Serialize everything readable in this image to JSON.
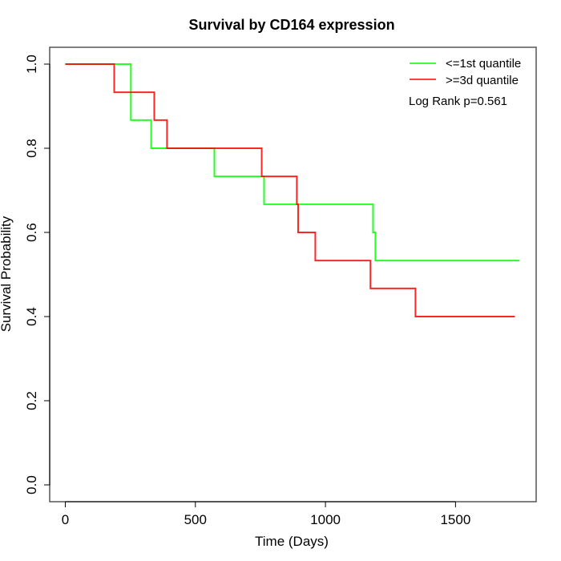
{
  "chart_data": {
    "type": "line",
    "subtype": "kaplan-meier-step",
    "title": "Survival by CD164 expression",
    "xlabel": "Time (Days)",
    "ylabel": "Survival Probability",
    "xlim": [
      -60,
      1810
    ],
    "ylim": [
      -0.04,
      1.04
    ],
    "xticks": [
      0,
      500,
      1000,
      1500
    ],
    "xtick_labels": [
      "0",
      "500",
      "1000",
      "1500"
    ],
    "yticks": [
      0.0,
      0.2,
      0.4,
      0.6,
      0.8,
      1.0
    ],
    "ytick_labels": [
      "0.0",
      "0.2",
      "0.4",
      "0.6",
      "0.8",
      "1.0"
    ],
    "grid": false,
    "legend_position": "top-right",
    "annotation": "Log Rank p=0.561",
    "series": [
      {
        "name": "<=1st quantile",
        "color": "#00ff00",
        "steps": [
          {
            "t": 0,
            "s": 1.0
          },
          {
            "t": 252,
            "s": 0.867
          },
          {
            "t": 330,
            "s": 0.8
          },
          {
            "t": 573,
            "s": 0.733
          },
          {
            "t": 764,
            "s": 0.667
          },
          {
            "t": 1183,
            "s": 0.6
          },
          {
            "t": 1192,
            "s": 0.533
          }
        ],
        "end_time": 1746
      },
      {
        "name": ">=3d quantile",
        "color": "#ff0000",
        "steps": [
          {
            "t": 0,
            "s": 1.0
          },
          {
            "t": 188,
            "s": 0.933
          },
          {
            "t": 342,
            "s": 0.867
          },
          {
            "t": 391,
            "s": 0.8
          },
          {
            "t": 755,
            "s": 0.733
          },
          {
            "t": 890,
            "s": 0.667
          },
          {
            "t": 895,
            "s": 0.6
          },
          {
            "t": 961,
            "s": 0.533
          },
          {
            "t": 1173,
            "s": 0.467
          },
          {
            "t": 1346,
            "s": 0.4
          }
        ],
        "end_time": 1728
      }
    ]
  }
}
